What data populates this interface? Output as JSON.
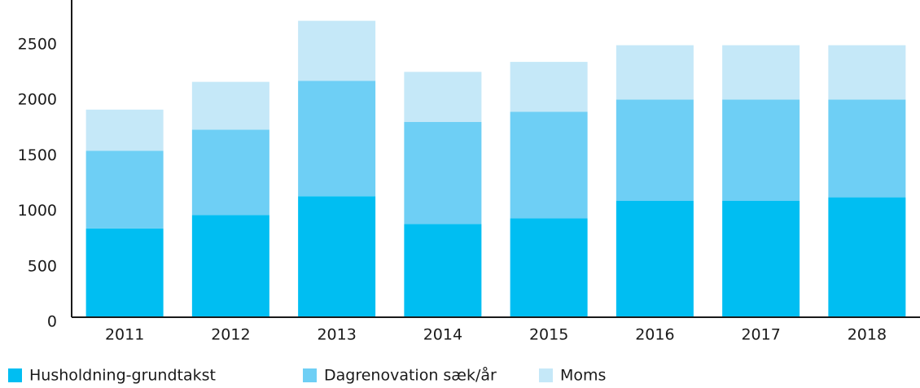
{
  "chart_data": {
    "type": "bar",
    "stacked": true,
    "categories": [
      "2011",
      "2012",
      "2013",
      "2014",
      "2015",
      "2016",
      "2017",
      "2018"
    ],
    "series": [
      {
        "name": "Husholdning-grundtakst",
        "color": "#00bef2",
        "values": [
          800,
          920,
          1090,
          840,
          890,
          1050,
          1050,
          1080
        ]
      },
      {
        "name": "Dagrenovation sæk/år",
        "color": "#6ecff5",
        "values": [
          700,
          770,
          1040,
          920,
          960,
          910,
          910,
          880
        ]
      },
      {
        "name": "Moms",
        "color": "#c5e8f8",
        "values": [
          370,
          430,
          540,
          450,
          450,
          490,
          490,
          490
        ]
      }
    ],
    "ylim": [
      0,
      2850
    ],
    "yticks": [
      0,
      500,
      1000,
      1500,
      2000,
      2500
    ],
    "grid": false,
    "legend": "bottom-left"
  }
}
